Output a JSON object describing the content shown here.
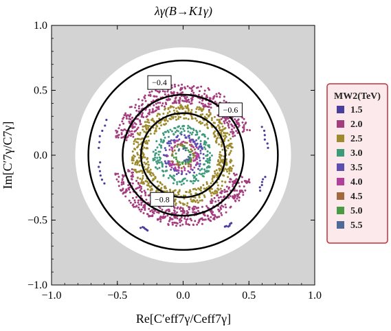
{
  "chart_data": {
    "type": "scatter",
    "title": "λγ(B→K1γ)",
    "xlabel": "Re[C′eff7γ/Ceff7γ]",
    "ylabel": "Im[C′7γ/C7γ]",
    "xlim": [
      -1.0,
      1.0
    ],
    "ylim": [
      -1.0,
      1.0
    ],
    "x_ticks": [
      "−1.0",
      "−0.5",
      "0.0",
      "0.5",
      "1.0"
    ],
    "y_ticks": [
      "−1.0",
      "−0.5",
      "0.0",
      "0.5",
      "1.0"
    ],
    "contours": [
      {
        "label": "−0.4",
        "radius": 0.72,
        "label_pos": [
          -0.18,
          0.56
        ]
      },
      {
        "label": "−0.6",
        "radius": 0.46,
        "label_pos": [
          0.36,
          0.35
        ]
      },
      {
        "label": "−0.8",
        "radius": 0.32,
        "label_pos": [
          -0.16,
          -0.34
        ]
      }
    ],
    "allowed_region_radius": 0.82,
    "legend": {
      "title": "MW2(TeV)",
      "placement": "right",
      "entries": [
        {
          "label": "1.5",
          "color": "#4b3f9c"
        },
        {
          "label": "2.0",
          "color": "#a43d7e"
        },
        {
          "label": "2.5",
          "color": "#9e8a2f"
        },
        {
          "label": "3.0",
          "color": "#3d9a7a"
        },
        {
          "label": "3.5",
          "color": "#5b4fb0"
        },
        {
          "label": "4.0",
          "color": "#b0409a"
        },
        {
          "label": "4.5",
          "color": "#a06a3e"
        },
        {
          "label": "5.0",
          "color": "#4a9a46"
        },
        {
          "label": "5.5",
          "color": "#4f6a96"
        }
      ]
    },
    "series": [
      {
        "name": "1.5",
        "shape": "arcs",
        "radius": 0.64,
        "angles_deg": [
          [
            155,
            175
          ],
          [
            185,
            200
          ],
          [
            -25,
            -15
          ],
          [
            5,
            20
          ],
          [
            -60,
            -55
          ],
          [
            -120,
            -115
          ]
        ]
      },
      {
        "name": "2.0",
        "shape": "band",
        "r_min": 0.4,
        "r_max": 0.55,
        "coverage": [
          [
            20,
            165
          ],
          [
            195,
            340
          ]
        ]
      },
      {
        "name": "2.5",
        "shape": "band",
        "r_min": 0.27,
        "r_max": 0.39,
        "coverage": [
          [
            0,
            360
          ]
        ]
      },
      {
        "name": "3.0",
        "shape": "band",
        "r_min": 0.17,
        "r_max": 0.23,
        "coverage": [
          [
            0,
            360
          ]
        ]
      },
      {
        "name": "3.5",
        "shape": "band",
        "r_min": 0.12,
        "r_max": 0.16,
        "coverage": [
          [
            0,
            360
          ]
        ]
      },
      {
        "name": "4.0",
        "shape": "band",
        "r_min": 0.09,
        "r_max": 0.13,
        "coverage": [
          [
            0,
            360
          ]
        ]
      },
      {
        "name": "4.5",
        "shape": "band",
        "r_min": 0.07,
        "r_max": 0.1,
        "coverage": [
          [
            0,
            360
          ]
        ]
      },
      {
        "name": "5.0",
        "shape": "band",
        "r_min": 0.05,
        "r_max": 0.08,
        "coverage": [
          [
            0,
            360
          ]
        ]
      },
      {
        "name": "5.5",
        "shape": "band",
        "r_min": 0.04,
        "r_max": 0.06,
        "coverage": [
          [
            0,
            360
          ]
        ]
      }
    ]
  },
  "colors": {
    "background": "#d3d3d3",
    "allowed": "#ffffff",
    "legend_bg": "#fbe9ec",
    "legend_border": "#c0303a"
  }
}
